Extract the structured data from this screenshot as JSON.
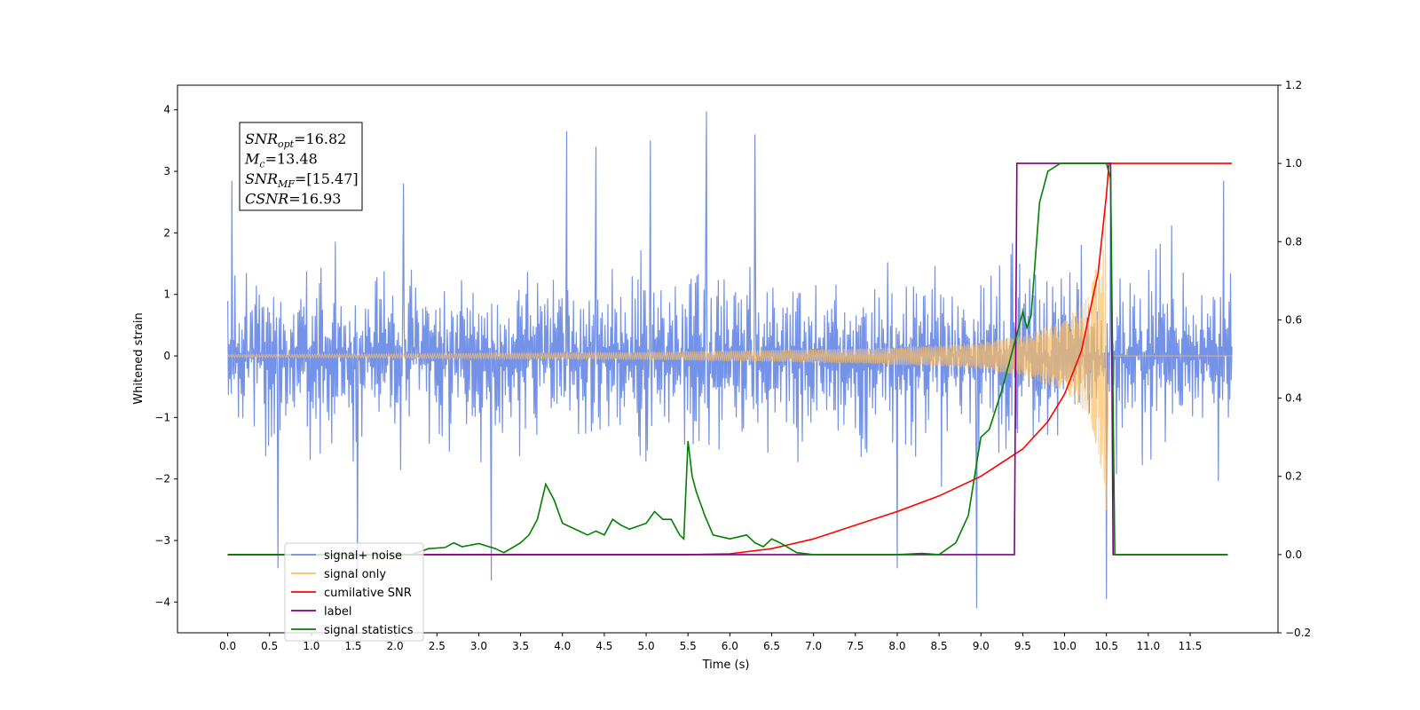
{
  "chart_data": {
    "type": "line",
    "xlabel": "Time (s)",
    "ylabel": "Whitened strain",
    "xlim": [
      -0.6,
      12.55
    ],
    "ylim_left": [
      -4.5,
      4.4
    ],
    "ylim_right": [
      -0.2,
      1.2
    ],
    "x_ticks": [
      "0.0",
      "0.5",
      "1.0",
      "1.5",
      "2.0",
      "2.5",
      "3.0",
      "3.5",
      "4.0",
      "4.5",
      "5.0",
      "5.5",
      "6.0",
      "6.5",
      "7.0",
      "7.5",
      "8.0",
      "8.5",
      "9.0",
      "9.5",
      "10.0",
      "10.5",
      "11.0",
      "11.5"
    ],
    "y_ticks_left": [
      -4,
      -3,
      -2,
      -1,
      0,
      1,
      2,
      3,
      4
    ],
    "y_ticks_right": [
      "−0.2",
      "0.0",
      "0.2",
      "0.4",
      "0.6",
      "0.8",
      "1.0",
      "1.2"
    ],
    "y_ticks_right_values": [
      -0.2,
      0.0,
      0.2,
      0.4,
      0.6,
      0.8,
      1.0,
      1.2
    ],
    "stats_box": [
      {
        "sym": "SNR",
        "sub": "opt",
        "val": "=16.82"
      },
      {
        "sym": "M",
        "sub": "c",
        "val": "=13.48"
      },
      {
        "sym": "SNR",
        "sub": "MF",
        "val": "=[15.47]"
      },
      {
        "sym": "CSNR",
        "sub": "",
        "val": "=16.93"
      }
    ],
    "legend": {
      "placement": "lower-left",
      "entries": [
        {
          "label": "signal+ noise",
          "color": "#6d8ce6"
        },
        {
          "label": "signal only",
          "color": "#ffbf60"
        },
        {
          "label": "cumilative SNR",
          "color": "#ff0000"
        },
        {
          "label": "label",
          "color": "#800080"
        },
        {
          "label": "signal statistics",
          "color": "#008000"
        }
      ]
    },
    "series": [
      {
        "name": "signal+ noise",
        "axis": "left",
        "color": "#6d8ce6",
        "x_range": [
          0.0,
          12.0
        ],
        "envelope_abs": 2.2,
        "spikes": [
          {
            "x": 0.05,
            "y": 2.85
          },
          {
            "x": 0.6,
            "y": -3.45
          },
          {
            "x": 1.55,
            "y": -3.6
          },
          {
            "x": 2.1,
            "y": 2.8
          },
          {
            "x": 3.15,
            "y": -3.65
          },
          {
            "x": 4.05,
            "y": 3.65
          },
          {
            "x": 4.4,
            "y": 3.4
          },
          {
            "x": 5.05,
            "y": 3.5
          },
          {
            "x": 5.72,
            "y": 3.97
          },
          {
            "x": 6.3,
            "y": 3.6
          },
          {
            "x": 8.0,
            "y": -3.45
          },
          {
            "x": 8.95,
            "y": -4.1
          },
          {
            "x": 10.5,
            "y": -3.95
          },
          {
            "x": 10.55,
            "y": 3.1
          },
          {
            "x": 11.9,
            "y": 2.85
          }
        ]
      },
      {
        "name": "signal only",
        "axis": "left",
        "color": "#ffbf60",
        "chirp_end": 10.5,
        "chirp_amplitude": [
          [
            0.0,
            0.02
          ],
          [
            5.0,
            0.06
          ],
          [
            7.5,
            0.12
          ],
          [
            8.5,
            0.17
          ],
          [
            9.0,
            0.22
          ],
          [
            9.5,
            0.32
          ],
          [
            10.0,
            0.58
          ],
          [
            10.3,
            1.0
          ],
          [
            10.45,
            1.9
          ],
          [
            10.5,
            2.6
          ]
        ]
      },
      {
        "name": "cumilative SNR",
        "axis": "right",
        "color": "#ff0000",
        "points": [
          [
            0.0,
            0.0
          ],
          [
            5.5,
            0.0
          ],
          [
            6.0,
            0.002
          ],
          [
            6.5,
            0.015
          ],
          [
            7.0,
            0.04
          ],
          [
            7.5,
            0.075
          ],
          [
            8.0,
            0.11
          ],
          [
            8.5,
            0.15
          ],
          [
            9.0,
            0.2
          ],
          [
            9.5,
            0.27
          ],
          [
            9.8,
            0.34
          ],
          [
            10.0,
            0.41
          ],
          [
            10.2,
            0.52
          ],
          [
            10.4,
            0.72
          ],
          [
            10.5,
            0.92
          ],
          [
            10.53,
            1.0
          ],
          [
            12.0,
            1.0
          ]
        ]
      },
      {
        "name": "label",
        "axis": "right",
        "color": "#800080",
        "points": [
          [
            0.0,
            0.0
          ],
          [
            9.4,
            0.0
          ],
          [
            9.43,
            1.0
          ],
          [
            10.55,
            1.0
          ],
          [
            10.58,
            0.0
          ],
          [
            11.95,
            0.0
          ]
        ]
      },
      {
        "name": "signal statistics",
        "axis": "right",
        "color": "#008000",
        "points": [
          [
            0.0,
            0.0
          ],
          [
            2.2,
            0.0
          ],
          [
            2.4,
            0.015
          ],
          [
            2.6,
            0.018
          ],
          [
            2.7,
            0.03
          ],
          [
            2.8,
            0.02
          ],
          [
            3.0,
            0.028
          ],
          [
            3.2,
            0.015
          ],
          [
            3.3,
            0.005
          ],
          [
            3.5,
            0.03
          ],
          [
            3.6,
            0.05
          ],
          [
            3.7,
            0.09
          ],
          [
            3.8,
            0.18
          ],
          [
            3.9,
            0.14
          ],
          [
            4.0,
            0.08
          ],
          [
            4.1,
            0.07
          ],
          [
            4.2,
            0.06
          ],
          [
            4.3,
            0.05
          ],
          [
            4.4,
            0.06
          ],
          [
            4.5,
            0.05
          ],
          [
            4.6,
            0.09
          ],
          [
            4.7,
            0.075
          ],
          [
            4.8,
            0.065
          ],
          [
            5.0,
            0.08
          ],
          [
            5.1,
            0.11
          ],
          [
            5.2,
            0.09
          ],
          [
            5.3,
            0.09
          ],
          [
            5.4,
            0.05
          ],
          [
            5.45,
            0.04
          ],
          [
            5.5,
            0.29
          ],
          [
            5.55,
            0.2
          ],
          [
            5.6,
            0.16
          ],
          [
            5.7,
            0.1
          ],
          [
            5.8,
            0.05
          ],
          [
            6.0,
            0.04
          ],
          [
            6.2,
            0.05
          ],
          [
            6.3,
            0.03
          ],
          [
            6.4,
            0.02
          ],
          [
            6.5,
            0.04
          ],
          [
            6.6,
            0.03
          ],
          [
            6.8,
            0.005
          ],
          [
            7.0,
            0.0
          ],
          [
            8.0,
            0.0
          ],
          [
            8.3,
            0.003
          ],
          [
            8.5,
            0.0
          ],
          [
            8.7,
            0.03
          ],
          [
            8.85,
            0.1
          ],
          [
            9.0,
            0.3
          ],
          [
            9.1,
            0.32
          ],
          [
            9.25,
            0.42
          ],
          [
            9.35,
            0.5
          ],
          [
            9.45,
            0.58
          ],
          [
            9.5,
            0.62
          ],
          [
            9.55,
            0.58
          ],
          [
            9.6,
            0.61
          ],
          [
            9.7,
            0.9
          ],
          [
            9.8,
            0.98
          ],
          [
            9.95,
            1.0
          ],
          [
            10.5,
            1.0
          ],
          [
            10.55,
            0.96
          ],
          [
            10.6,
            0.0
          ],
          [
            11.95,
            0.0
          ]
        ]
      }
    ]
  }
}
